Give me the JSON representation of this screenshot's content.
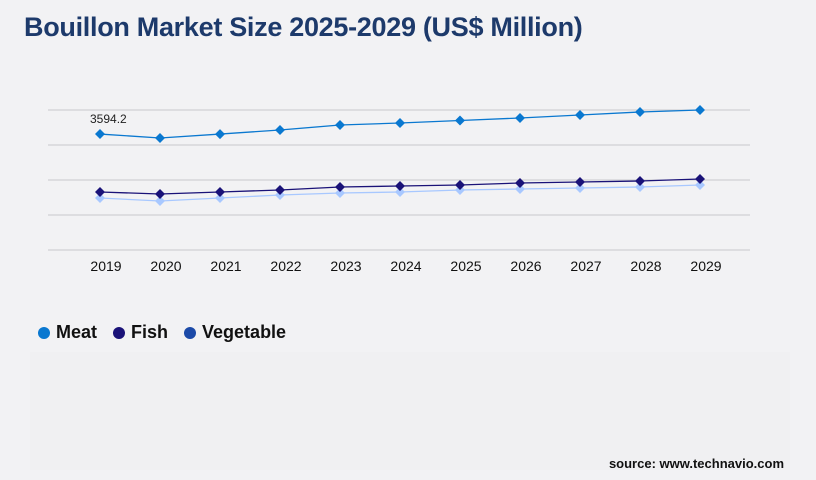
{
  "chart_data": {
    "type": "line",
    "title": "Bouillon Market Size 2025-2029 (US$ Million)",
    "categories": [
      "2019",
      "2020",
      "2021",
      "2022",
      "2023",
      "2024",
      "2025",
      "2026",
      "2027",
      "2028",
      "2029"
    ],
    "series": [
      {
        "name": "Meat",
        "color": "#0a78d0",
        "marker_color": "#0a78d0",
        "values": [
          3594.2,
          3472,
          3594,
          3720,
          3875,
          3937,
          4014,
          4092,
          4185,
          4278,
          4340
        ]
      },
      {
        "name": "Fish",
        "color": "#1a1278",
        "marker_color": "#1a1278",
        "values": [
          1798,
          1736,
          1798,
          1860,
          1953,
          1984,
          2015,
          2077,
          2108,
          2139,
          2201
        ]
      },
      {
        "name": "Vegetable",
        "color": "#a8c8ff",
        "marker_color": "#a8c8ff",
        "legend_color": "#1c4aa8",
        "values": [
          1612,
          1519,
          1612,
          1705,
          1767,
          1798,
          1860,
          1891,
          1922,
          1953,
          2015
        ]
      }
    ],
    "annotations": [
      {
        "category": "2019",
        "series": "Meat",
        "text": "3594.2"
      }
    ],
    "ylim": [
      0,
      4340
    ],
    "grid": true,
    "y_ticks_shown": false,
    "legend_position": "bottom-left"
  },
  "source": "source: www.technavio.com"
}
